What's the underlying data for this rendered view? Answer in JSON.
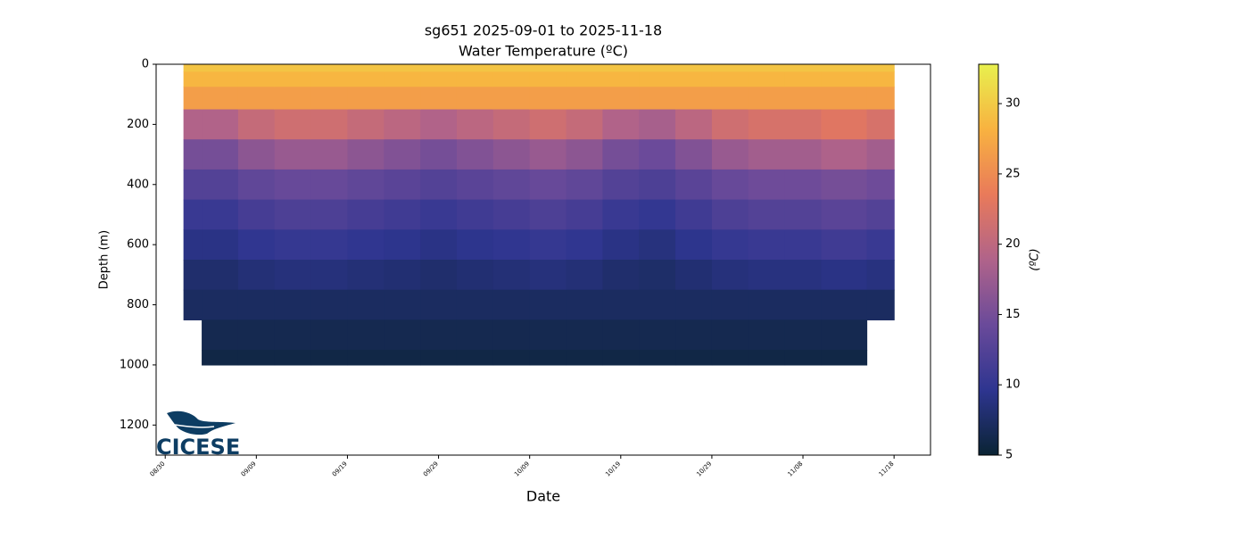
{
  "chart_data": {
    "type": "heatmap",
    "title": "sg651 2025-09-01 to 2025-11-18",
    "subtitle": "Water Temperature (ºC)",
    "x_label": "Date",
    "y_label": "Depth (m)",
    "colorbar_label": "(ºC)",
    "logo": "CICESE",
    "x": [
      "09/01",
      "09/05",
      "09/09",
      "09/13",
      "09/17",
      "09/21",
      "09/25",
      "09/29",
      "10/03",
      "10/07",
      "10/11",
      "10/15",
      "10/19",
      "10/23",
      "10/27",
      "10/31",
      "11/04",
      "11/08",
      "11/12",
      "11/18"
    ],
    "y": [
      0,
      50,
      100,
      200,
      300,
      400,
      500,
      600,
      700,
      800,
      900,
      1000
    ],
    "values": [
      [
        29.5,
        28.5,
        26.5,
        19.0,
        15.0,
        12.5,
        10.5,
        9.1,
        7.8,
        7.2,
        null,
        null
      ],
      [
        29.5,
        28.5,
        26.5,
        19.0,
        15.0,
        12.5,
        10.5,
        9.1,
        7.8,
        7.2,
        6.4,
        5.9
      ],
      [
        29.5,
        28.5,
        26.5,
        20.5,
        16.5,
        13.5,
        11.5,
        9.8,
        8.3,
        7.2,
        6.4,
        5.9
      ],
      [
        29.5,
        28.5,
        26.5,
        21.3,
        17.3,
        14.0,
        12.0,
        10.2,
        8.6,
        7.2,
        6.4,
        5.9
      ],
      [
        29.5,
        28.5,
        26.5,
        21.3,
        17.3,
        14.0,
        12.0,
        10.2,
        8.6,
        7.2,
        6.4,
        5.9
      ],
      [
        29.5,
        28.5,
        26.5,
        20.5,
        16.5,
        13.5,
        11.5,
        9.8,
        8.3,
        7.2,
        6.4,
        5.9
      ],
      [
        29.5,
        28.5,
        26.5,
        19.8,
        15.8,
        13.0,
        11.0,
        9.5,
        8.1,
        7.2,
        6.4,
        5.9
      ],
      [
        29.5,
        28.5,
        26.5,
        19.0,
        15.0,
        12.5,
        10.5,
        9.1,
        7.8,
        7.2,
        6.4,
        5.9
      ],
      [
        29.5,
        28.5,
        26.5,
        19.8,
        15.8,
        13.0,
        11.0,
        9.5,
        8.1,
        7.2,
        6.4,
        5.9
      ],
      [
        29.5,
        28.5,
        26.5,
        20.5,
        16.5,
        13.5,
        11.5,
        9.8,
        8.3,
        7.2,
        6.4,
        5.9
      ],
      [
        29.5,
        28.5,
        26.5,
        21.3,
        17.3,
        14.0,
        12.0,
        10.2,
        8.6,
        7.2,
        6.4,
        5.9
      ],
      [
        29.5,
        28.5,
        26.5,
        20.5,
        16.5,
        13.5,
        11.5,
        9.8,
        8.3,
        7.2,
        6.4,
        5.9
      ],
      [
        29.5,
        28.5,
        26.5,
        19.0,
        15.0,
        12.5,
        10.5,
        9.1,
        7.8,
        7.2,
        6.4,
        5.9
      ],
      [
        29.5,
        28.5,
        26.5,
        18.3,
        14.3,
        12.0,
        10.0,
        8.7,
        7.6,
        7.2,
        6.4,
        5.9
      ],
      [
        29.5,
        28.5,
        26.5,
        19.8,
        15.8,
        13.0,
        11.0,
        9.5,
        8.1,
        7.2,
        6.4,
        5.9
      ],
      [
        29.5,
        28.5,
        26.5,
        21.3,
        17.3,
        14.0,
        12.0,
        10.2,
        8.6,
        7.2,
        6.4,
        5.9
      ],
      [
        29.5,
        28.5,
        26.5,
        22.0,
        18.0,
        14.5,
        12.5,
        10.5,
        8.8,
        7.2,
        6.4,
        5.9
      ],
      [
        29.5,
        28.5,
        26.5,
        22.0,
        18.0,
        14.5,
        12.5,
        10.5,
        8.8,
        7.2,
        6.4,
        5.9
      ],
      [
        29.5,
        28.5,
        26.5,
        22.8,
        18.8,
        15.0,
        13.0,
        11.0,
        9.1,
        7.2,
        6.4,
        5.9
      ],
      [
        29.5,
        28.5,
        26.5,
        22.0,
        18.0,
        14.5,
        12.5,
        10.5,
        8.8,
        7.2,
        null,
        null
      ]
    ],
    "xlim": [
      "08/29",
      "11/22"
    ],
    "xticks": [
      "08/30",
      "09/09",
      "09/19",
      "09/29",
      "10/09",
      "10/19",
      "10/29",
      "11/08",
      "11/18"
    ],
    "ylim": [
      1300,
      0
    ],
    "yticks": [
      0,
      200,
      400,
      600,
      800,
      1000,
      1200
    ],
    "clim": [
      5,
      32.8
    ],
    "cticks": [
      5,
      10,
      15,
      20,
      25,
      30
    ],
    "colormap": [
      "#0a2434",
      "#2e3590",
      "#6a4a9a",
      "#b0638a",
      "#e97a5a",
      "#f8b240",
      "#e8f04e"
    ]
  }
}
